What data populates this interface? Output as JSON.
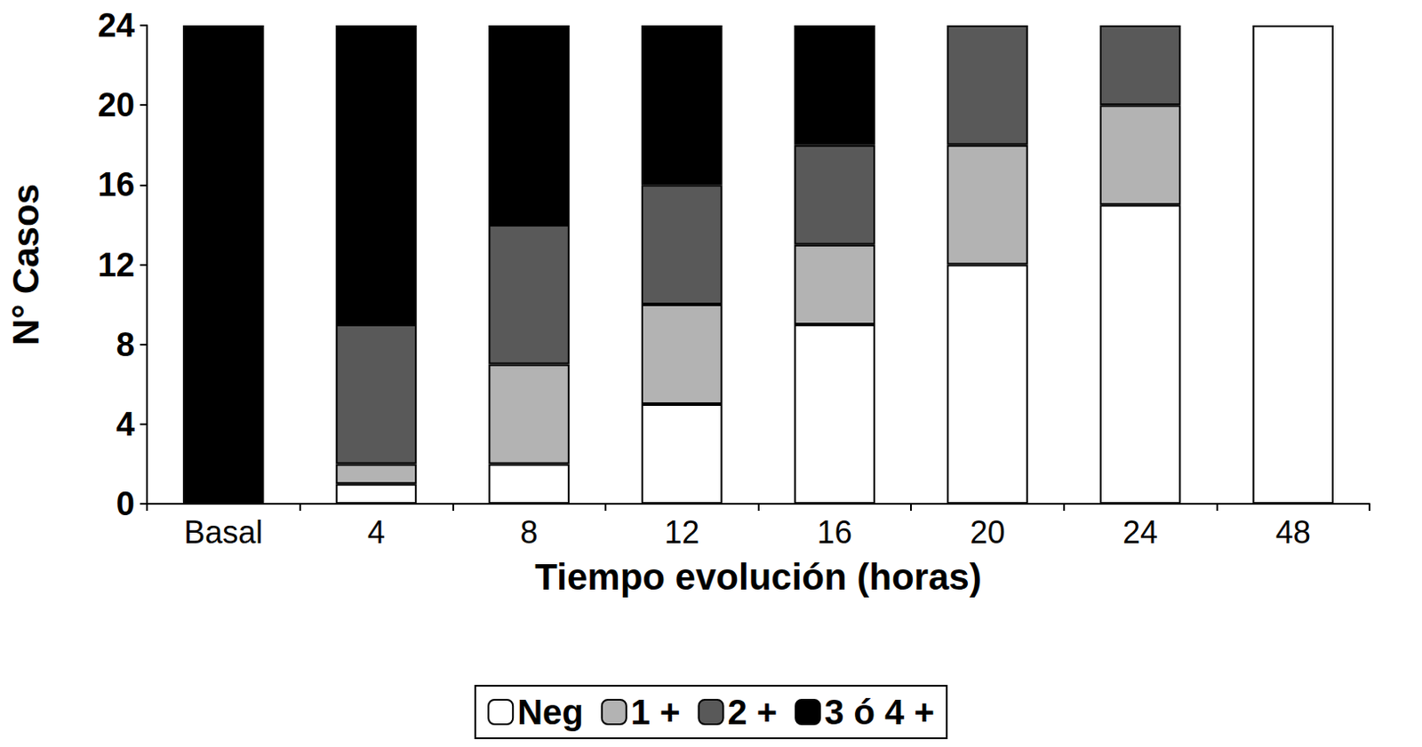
{
  "chart_data": {
    "type": "bar",
    "stacked": true,
    "x_label": "Tiempo evolución (horas)",
    "y_label": "N° Casos",
    "categories": [
      "Basal",
      "4",
      "8",
      "12",
      "16",
      "20",
      "24",
      "48"
    ],
    "series": [
      {
        "name": "Neg",
        "color": "#ffffff",
        "values": [
          0,
          1,
          2,
          5,
          9,
          12,
          15,
          24
        ]
      },
      {
        "name": "1 +",
        "color": "#b3b3b3",
        "values": [
          0,
          1,
          5,
          5,
          4,
          6,
          5,
          0
        ]
      },
      {
        "name": "2 +",
        "color": "#595959",
        "values": [
          0,
          7,
          7,
          6,
          5,
          6,
          4,
          0
        ]
      },
      {
        "name": "3 ó 4 +",
        "color": "#000000",
        "values": [
          24,
          15,
          10,
          8,
          6,
          0,
          0,
          0
        ]
      }
    ],
    "ylim": [
      0,
      24
    ],
    "yticks": [
      0,
      4,
      8,
      12,
      16,
      20,
      24
    ],
    "grid": false,
    "legend": "bottom"
  }
}
